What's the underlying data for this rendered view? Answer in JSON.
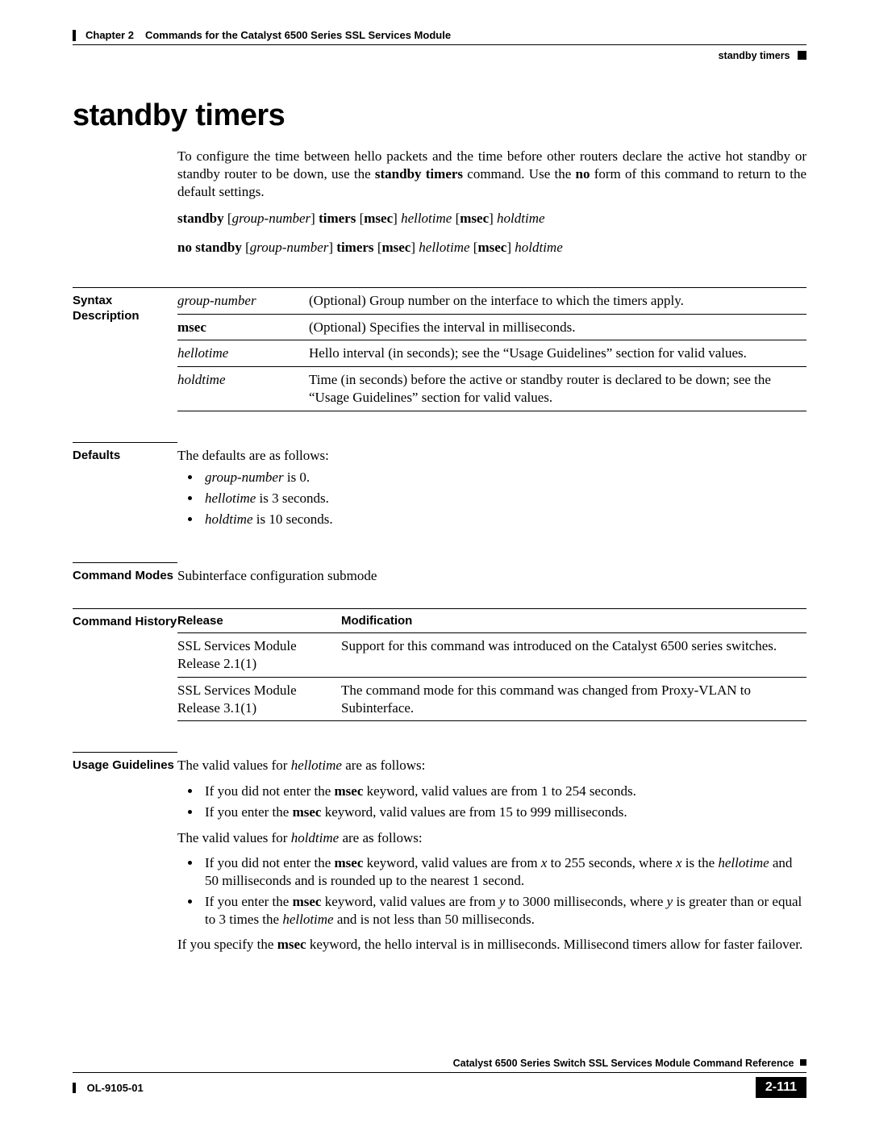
{
  "header": {
    "chapter_label": "Chapter 2",
    "chapter_title": "Commands for the Catalyst 6500 Series SSL Services Module",
    "section_tag": "standby timers"
  },
  "title": "standby timers",
  "intro_html": "To configure the time between hello packets and the time before other routers declare the active hot standby or standby router to be down, use the <b>standby timers</b> command. Use the <b>no</b> form of this command to return to the default settings.",
  "syntax_lines": [
    "<b>standby</b> [<i>group-number</i>] <b>timers</b> [<b>msec</b>] <i>hellotime</i> [<b>msec</b>] <i>holdtime</i>",
    "<b>no standby</b> [<i>group-number</i>] <b>timers</b> [<b>msec</b>] <i>hellotime</i> [<b>msec</b>] <i>holdtime</i>"
  ],
  "sections": {
    "syntax_desc_label": "Syntax Description",
    "defaults_label": "Defaults",
    "command_modes_label": "Command Modes",
    "command_history_label": "Command History",
    "usage_label": "Usage Guidelines"
  },
  "syntax_table": [
    {
      "term_html": "<i>group-number</i>",
      "desc_html": "(Optional) Group number on the interface to which the timers apply."
    },
    {
      "term_html": "<b>msec</b>",
      "desc_html": "(Optional) Specifies the interval in milliseconds."
    },
    {
      "term_html": "<i>hellotime</i>",
      "desc_html": "Hello interval (in seconds); see the &ldquo;Usage Guidelines&rdquo; section for valid values."
    },
    {
      "term_html": "<i>holdtime</i>",
      "desc_html": "Time (in seconds) before the active or standby router is declared to be down; see the &ldquo;Usage Guidelines&rdquo; section for valid values."
    }
  ],
  "defaults": {
    "intro": "The defaults are as follows:",
    "items_html": [
      "<i>group-number</i> is 0.",
      "<i>hellotime</i> is 3 seconds.",
      "<i>holdtime</i> is 10 seconds."
    ]
  },
  "command_modes": "Subinterface configuration submode",
  "history": {
    "col_release": "Release",
    "col_mod": "Modification",
    "rows": [
      {
        "release": "SSL Services Module Release 2.1(1)",
        "mod": "Support for this command was introduced on the Catalyst 6500 series switches."
      },
      {
        "release": "SSL Services Module Release 3.1(1)",
        "mod": "The command mode for this command was changed from Proxy-VLAN to Subinterface."
      }
    ]
  },
  "usage": {
    "p1_html": "The valid values for <i>hellotime</i> are as follows:",
    "list1_html": [
      "If you did not enter the <b>msec</b> keyword, valid values are from 1 to 254 seconds.",
      "If you enter the <b>msec</b> keyword, valid values are from 15 to 999 milliseconds."
    ],
    "p2_html": "The valid values for <i>holdtime</i> are as follows:",
    "list2_html": [
      "If you did not enter the <b>msec</b> keyword, valid values are from <i>x</i> to 255 seconds, where <i>x</i> is the <i>hellotime</i> and 50 milliseconds and is rounded up to the nearest 1 second.",
      "If you enter the <b>msec</b> keyword, valid values are from <i>y</i> to 3000 milliseconds, where <i>y</i> is greater than or equal to 3 times the <i>hellotime</i> and is not less than 50 milliseconds."
    ],
    "p3_html": "If you specify the <b>msec</b> keyword, the hello interval is in milliseconds. Millisecond timers allow for faster failover."
  },
  "footer": {
    "book": "Catalyst 6500 Series Switch SSL Services Module Command Reference",
    "doc_id": "OL-9105-01",
    "page": "2-111"
  }
}
